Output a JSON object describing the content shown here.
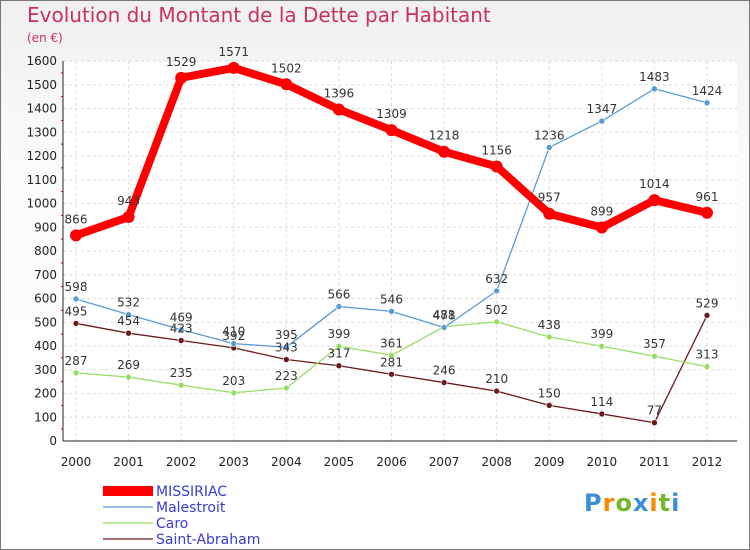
{
  "chart_data": {
    "type": "line",
    "title": "Evolution du Montant de la Dette par Habitant",
    "subtitle": "(en €)",
    "x": [
      "2000",
      "2001",
      "2002",
      "2003",
      "2004",
      "2005",
      "2006",
      "2007",
      "2008",
      "2009",
      "2010",
      "2011",
      "2012"
    ],
    "ylim": [
      0,
      1600
    ],
    "yticks": [
      0,
      100,
      200,
      300,
      400,
      500,
      600,
      700,
      800,
      900,
      1000,
      1100,
      1200,
      1300,
      1400,
      1500,
      1600
    ],
    "grid": true,
    "legend_position": "bottom-left",
    "series": [
      {
        "name": "MISSIRIAC",
        "color": "#ff0000",
        "values": [
          866,
          943,
          1529,
          1571,
          1502,
          1396,
          1309,
          1218,
          1156,
          957,
          899,
          1014,
          961
        ]
      },
      {
        "name": "Malestroit",
        "color": "#5b9bd5",
        "values": [
          598,
          532,
          469,
          410,
          395,
          566,
          546,
          478,
          632,
          1236,
          1347,
          1483,
          1424
        ]
      },
      {
        "name": "Caro",
        "color": "#99dd66",
        "values": [
          287,
          269,
          235,
          203,
          223,
          399,
          361,
          481,
          502,
          438,
          399,
          357,
          313
        ]
      },
      {
        "name": "Saint-Abraham",
        "color": "#6b1a1a",
        "values": [
          495,
          454,
          423,
          392,
          343,
          317,
          281,
          246,
          210,
          150,
          114,
          77,
          529
        ]
      }
    ]
  },
  "logo": {
    "letters": [
      "P",
      "r",
      "o",
      "x",
      "i",
      "t",
      "i"
    ],
    "colors": [
      "#3c8fd6",
      "#ff8a00",
      "#77b82a",
      "#3c8fd6",
      "#ff8a00",
      "#77b82a",
      "#3c8fd6"
    ]
  }
}
